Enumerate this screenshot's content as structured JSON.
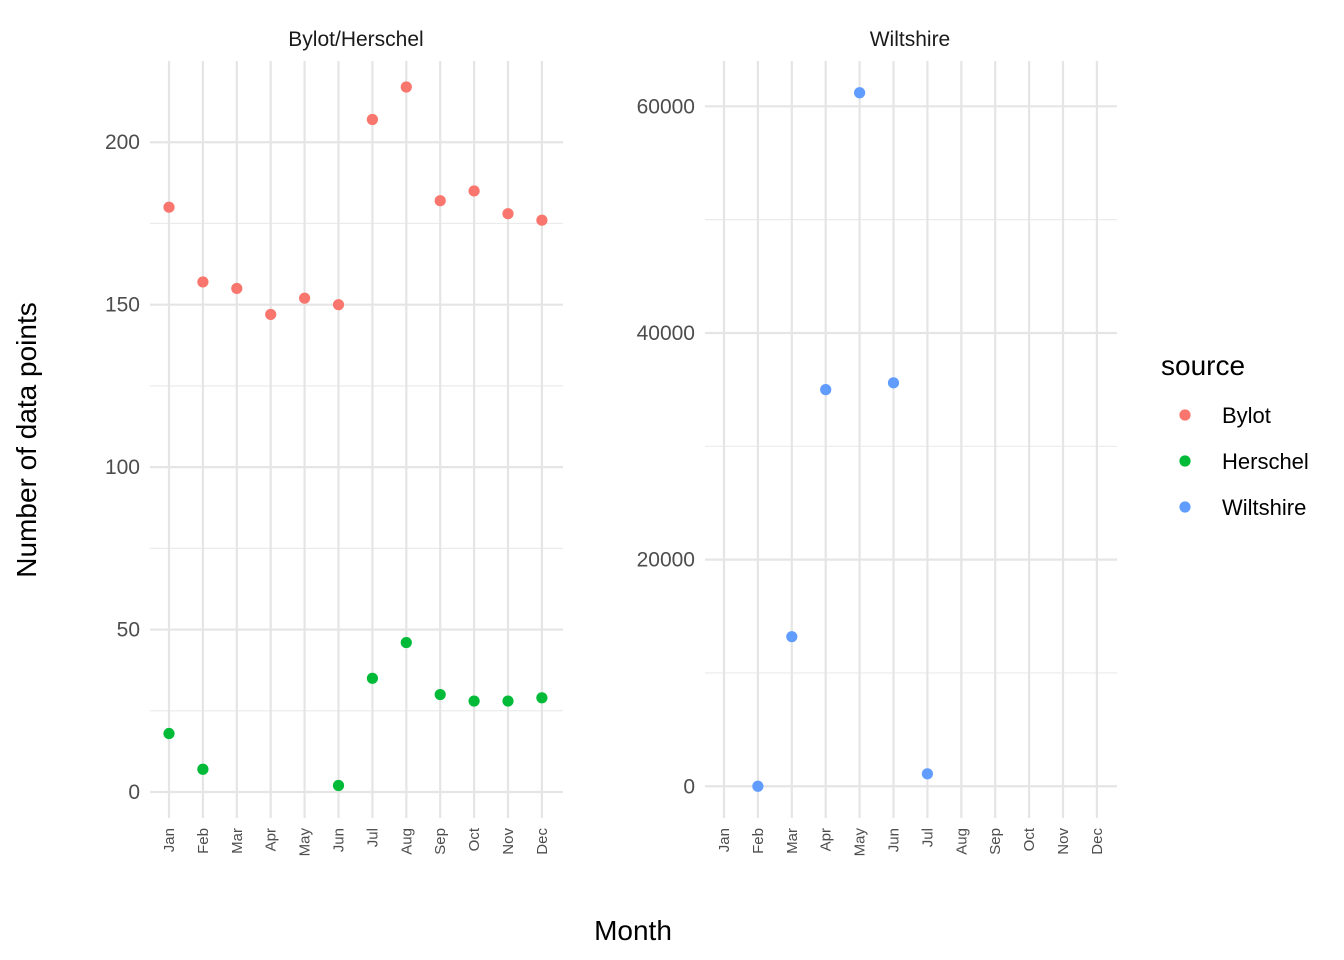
{
  "chart_data": {
    "type": "scatter",
    "xlabel": "Month",
    "ylabel": "Number of data points",
    "months": [
      "Jan",
      "Feb",
      "Mar",
      "Apr",
      "May",
      "Jun",
      "Jul",
      "Aug",
      "Sep",
      "Oct",
      "Nov",
      "Dec"
    ],
    "legend": {
      "title": "source",
      "position": "right",
      "entries": [
        {
          "name": "Bylot",
          "color": "#F8766D"
        },
        {
          "name": "Herschel",
          "color": "#00BA38"
        },
        {
          "name": "Wiltshire",
          "color": "#619CFF"
        }
      ]
    },
    "grid": true,
    "panels": [
      {
        "title": "Bylot/Herschel",
        "ylim": [
          -8,
          225
        ],
        "yticks": [
          0,
          50,
          100,
          150,
          200
        ],
        "series": [
          {
            "name": "Bylot",
            "color": "#F8766D",
            "x": [
              "Jan",
              "Feb",
              "Mar",
              "Apr",
              "May",
              "Jun",
              "Jul",
              "Aug",
              "Sep",
              "Oct",
              "Nov",
              "Dec"
            ],
            "y": [
              180,
              157,
              155,
              147,
              152,
              150,
              207,
              217,
              182,
              185,
              178,
              176
            ]
          },
          {
            "name": "Herschel",
            "color": "#00BA38",
            "x": [
              "Jan",
              "Feb",
              "Jun",
              "Jul",
              "Aug",
              "Sep",
              "Oct",
              "Nov",
              "Dec"
            ],
            "y": [
              18,
              7,
              2,
              35,
              46,
              30,
              28,
              28,
              29
            ]
          }
        ]
      },
      {
        "title": "Wiltshire",
        "ylim": [
          -2800,
          64000
        ],
        "yticks": [
          0,
          20000,
          40000,
          60000
        ],
        "series": [
          {
            "name": "Wiltshire",
            "color": "#619CFF",
            "x": [
              "Feb",
              "Mar",
              "Apr",
              "May",
              "Jun",
              "Jul"
            ],
            "y": [
              0,
              13200,
              35000,
              61200,
              35600,
              1100
            ]
          }
        ]
      }
    ]
  }
}
